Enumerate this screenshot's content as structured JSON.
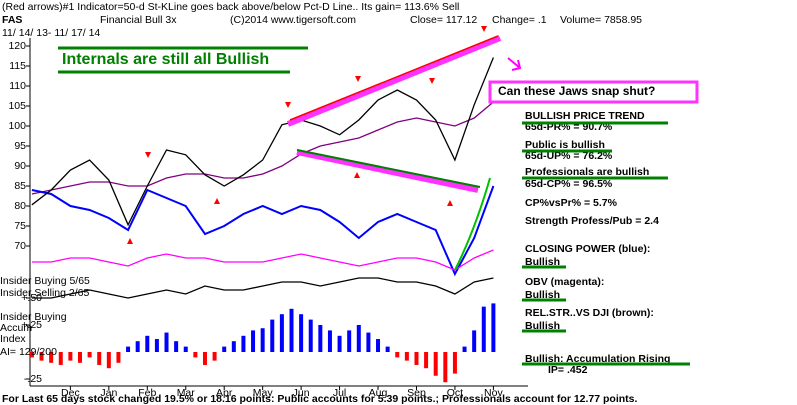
{
  "header": {
    "line1": "(Red arrows)#1 Indicator=50-d St-KLine goes back above/below Pct-D Line.. Its gain= 113.6% Sell",
    "symbol": "FAS",
    "name": "Financial Bull 3x",
    "copyright": "(C)2014 www.tigersoft.com",
    "close": "Close= 117.12",
    "change": "Change= .1",
    "volume": "Volume= 7858.95",
    "dates": "11/ 14/ 13- 11/ 17/ 14"
  },
  "annotations": {
    "internals": "Internals are still all Bullish",
    "jaws": "Can these Jaws snap shut?"
  },
  "right_panel": [
    "BULLISH PRICE TREND",
    "65d-PR% = 90.7%",
    "Public is bullish",
    "65d-UP% = 76.2%",
    "Professionals are bullish",
    "65d-CP% = 96.5%",
    "CP%vsPr% = 5.7%",
    "Strength Profess/Pub = 2.4",
    "CLOSING POWER (blue):",
    "Bullish",
    "OBV (magenta):",
    "Bullish",
    "REL.STR..VS DJI (brown):",
    "Bullish",
    "Bullish: Accumulation Rising",
    "IP= .452"
  ],
  "left_panel": [
    "Insider Buying  5/65",
    "Insider Selling  2/65",
    "Insider Buying",
    "Accum",
    "Index",
    "AI= 129/200"
  ],
  "footer": "For Last 65 days stock changed 19.5% or 18.16 points: Public accounts for 5.39 points.; Professionals account for 12.77 points.",
  "chart_data": [
    {
      "type": "line",
      "x": [
        -0.5,
        0,
        0.5,
        1,
        1.5,
        2,
        2.5,
        3,
        3.5,
        4,
        4.5,
        5,
        5.5,
        6,
        6.5,
        7,
        7.5,
        8,
        8.5,
        9,
        9.5,
        10,
        10.5,
        11,
        11.5
      ],
      "xlim": [
        -0.55,
        12.4
      ],
      "ylim": [
        48,
        123
      ],
      "yticks": [
        70,
        75,
        80,
        85,
        90,
        95,
        100,
        105,
        110,
        115,
        120
      ],
      "series": [
        {
          "color": "#800080",
          "values": [
            83,
            84,
            85,
            86,
            86,
            85,
            85,
            87,
            88,
            88,
            87,
            87,
            88,
            90,
            93,
            95,
            96,
            97,
            99,
            101,
            102,
            101,
            100,
            102,
            106
          ]
        },
        {
          "color": "#0000ff",
          "values": [
            84,
            83,
            80,
            79,
            77,
            74,
            84,
            82,
            80,
            73,
            75,
            78,
            80,
            78,
            80,
            79,
            76,
            72,
            76,
            78,
            76,
            74,
            63,
            72,
            85
          ]
        },
        {
          "color": "#ff00ff",
          "values": [
            66,
            66,
            67,
            67,
            66,
            65,
            67,
            68,
            67,
            67,
            66,
            66,
            66,
            67,
            68,
            67,
            66,
            65,
            66,
            67,
            67,
            66,
            64,
            67,
            69
          ]
        },
        {
          "color": "#000000",
          "values": [
            57,
            57,
            58,
            59,
            58,
            57,
            58,
            59,
            58,
            60,
            59,
            59,
            60,
            61,
            61,
            60,
            61,
            62,
            62,
            61,
            61,
            60,
            58,
            61,
            62
          ]
        },
        {
          "color": "#000000",
          "values": [
            80.3,
            84,
            89,
            91.5,
            86.5,
            75.3,
            85,
            94,
            92.8,
            87.8,
            85,
            87.8,
            91.5,
            100.3,
            101.5,
            100,
            97.8,
            101.5,
            106.5,
            109,
            106.5,
            101.5,
            91.5,
            105.3,
            117.12
          ]
        }
      ]
    },
    {
      "type": "bar",
      "x": [
        -0.5,
        -0.25,
        0,
        0.25,
        0.5,
        0.75,
        1,
        1.25,
        1.5,
        1.75,
        2,
        2.25,
        2.5,
        2.75,
        3,
        3.25,
        3.5,
        3.75,
        4,
        4.25,
        4.5,
        4.75,
        5,
        5.25,
        5.5,
        5.75,
        6,
        6.25,
        6.5,
        6.75,
        7,
        7.25,
        7.5,
        7.75,
        8,
        8.25,
        8.5,
        8.75,
        9,
        9.25,
        9.5,
        9.75,
        10,
        10.25,
        10.5,
        10.75,
        11,
        11.25,
        11.5
      ],
      "values": [
        -0.05,
        -0.08,
        -0.1,
        -0.12,
        -0.08,
        -0.1,
        -0.05,
        -0.12,
        -0.15,
        -0.1,
        0.05,
        0.1,
        0.15,
        0.12,
        0.18,
        0.1,
        0.05,
        -0.05,
        -0.12,
        -0.08,
        0.05,
        0.1,
        0.15,
        0.2,
        0.22,
        0.3,
        0.35,
        0.4,
        0.35,
        0.3,
        0.25,
        0.2,
        0.15,
        0.2,
        0.25,
        0.18,
        0.12,
        0.05,
        -0.05,
        -0.08,
        -0.12,
        -0.15,
        -0.22,
        -0.28,
        -0.2,
        0.05,
        0.2,
        0.42,
        0.45
      ],
      "pos_color": "#0000ff",
      "neg_color": "#ff0000",
      "xlim": [
        -0.55,
        12.4
      ],
      "ylim": [
        -0.3,
        0.55
      ],
      "yticks": [
        {
          "value": 0.5,
          "label": "+.50"
        },
        {
          "value": 0.25,
          "label": "+.25"
        },
        {
          "value": -0.25,
          "label": "-.25"
        }
      ],
      "xticks": [
        {
          "value": 0.5,
          "label": "Dec"
        },
        {
          "value": 1.5,
          "label": "Jan"
        },
        {
          "value": 2.5,
          "label": "Feb"
        },
        {
          "value": 3.5,
          "label": "Mar"
        },
        {
          "value": 4.5,
          "label": "Apr"
        },
        {
          "value": 5.5,
          "label": "May"
        },
        {
          "value": 6.5,
          "label": "Jun"
        },
        {
          "value": 7.5,
          "label": "Jul"
        },
        {
          "value": 8.5,
          "label": "Aug"
        },
        {
          "value": 9.5,
          "label": "Sep"
        },
        {
          "value": 10.5,
          "label": "Oct"
        },
        {
          "value": 11.5,
          "label": "Nov"
        }
      ]
    }
  ]
}
